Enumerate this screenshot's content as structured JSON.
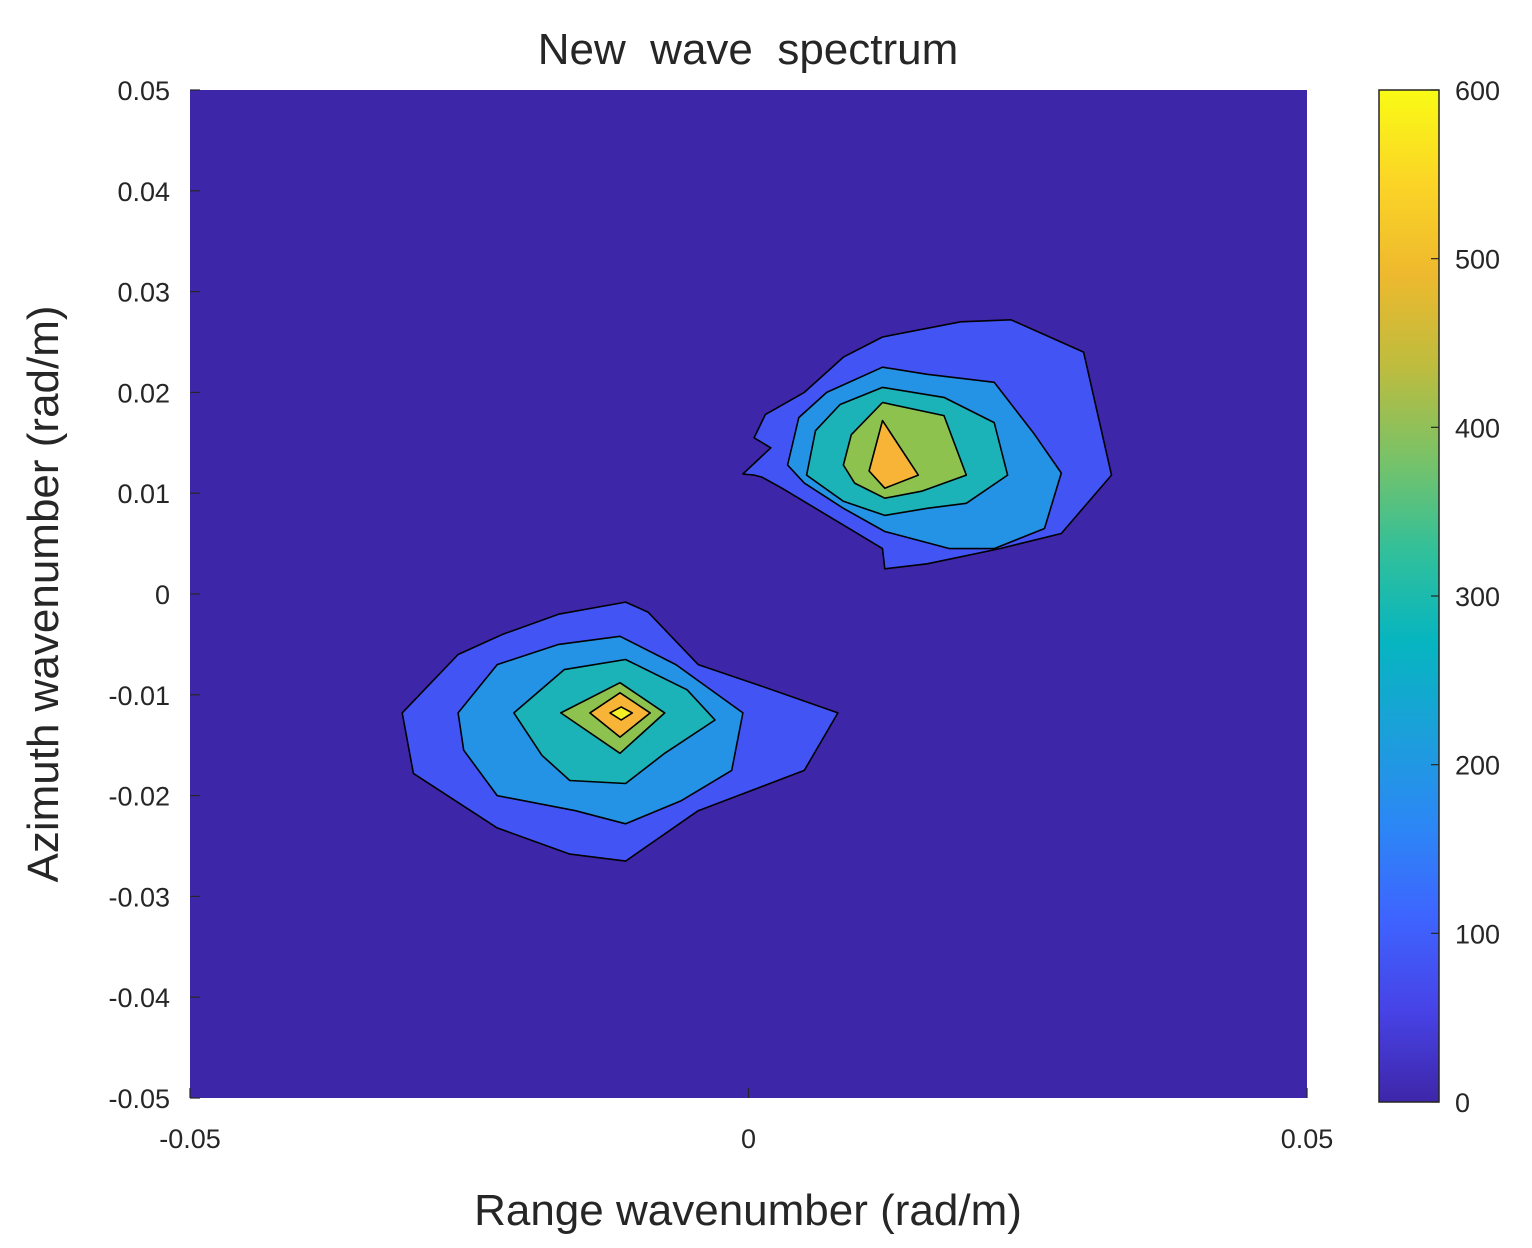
{
  "chart_data": {
    "type": "contourf",
    "title": "New  wave  spectrum",
    "xlabel": "Range wavenumber (rad/m)",
    "ylabel": "Azimuth wavenumber (rad/m)",
    "xlim": [
      -0.05,
      0.05
    ],
    "ylim": [
      -0.05,
      0.05
    ],
    "x_ticks": [
      {
        "value": -0.05,
        "label": "-0.05"
      },
      {
        "value": 0,
        "label": "0"
      },
      {
        "value": 0.05,
        "label": "0.05"
      }
    ],
    "y_ticks": [
      {
        "value": 0.05,
        "label": "0.05"
      },
      {
        "value": 0.04,
        "label": "0.04"
      },
      {
        "value": 0.03,
        "label": "0.03"
      },
      {
        "value": 0.02,
        "label": "0.02"
      },
      {
        "value": 0.01,
        "label": "0.01"
      },
      {
        "value": 0,
        "label": "0"
      },
      {
        "value": -0.01,
        "label": "-0.01"
      },
      {
        "value": -0.02,
        "label": "-0.02"
      },
      {
        "value": -0.03,
        "label": "-0.03"
      },
      {
        "value": -0.04,
        "label": "-0.04"
      },
      {
        "value": -0.05,
        "label": "-0.05"
      }
    ],
    "background_color": "#3E26A8",
    "colorbar": {
      "min": 0,
      "max": 600,
      "colormap": "parula",
      "ticks": [
        {
          "value": 0,
          "label": "0"
        },
        {
          "value": 100,
          "label": "100"
        },
        {
          "value": 200,
          "label": "200"
        },
        {
          "value": 300,
          "label": "300"
        },
        {
          "value": 400,
          "label": "400"
        },
        {
          "value": 500,
          "label": "500"
        },
        {
          "value": 600,
          "label": "600"
        }
      ],
      "stops": [
        "#3E26A8",
        "#4743E7",
        "#3E64FF",
        "#2C87F5",
        "#1BA0DA",
        "#06B5C0",
        "#32C09A",
        "#79C267",
        "#BEBC3E",
        "#EEB92E",
        "#FBD526",
        "#F9FB15"
      ]
    },
    "levels": [
      {
        "name": "level-1",
        "color": "#4354F5",
        "peaks": [
          [
            [
              -0.0005,
              0.0119
            ],
            [
              0.0005,
              0.0118
            ],
            [
              0.0012,
              0.0116
            ],
            [
              0.003,
              0.0105
            ],
            [
              0.006,
              0.0085
            ],
            [
              0.012,
              0.0045
            ],
            [
              0.0122,
              0.0025
            ],
            [
              0.016,
              0.003
            ],
            [
              0.0225,
              0.0045
            ],
            [
              0.028,
              0.006
            ],
            [
              0.0325,
              0.0118
            ],
            [
              0.03,
              0.024
            ],
            [
              0.0235,
              0.0272
            ],
            [
              0.019,
              0.027
            ],
            [
              0.012,
              0.0255
            ],
            [
              0.0085,
              0.0235
            ],
            [
              0.005,
              0.02
            ],
            [
              0.0015,
              0.0178
            ],
            [
              0.0005,
              0.0155
            ],
            [
              0.002,
              0.0145
            ]
          ],
          [
            [
              -0.031,
              -0.0118
            ],
            [
              -0.026,
              -0.006
            ],
            [
              -0.022,
              -0.004
            ],
            [
              -0.017,
              -0.002
            ],
            [
              -0.011,
              -0.0008
            ],
            [
              -0.009,
              -0.0018
            ],
            [
              -0.0045,
              -0.007
            ],
            [
              0.0008,
              -0.009
            ],
            [
              0.008,
              -0.0118
            ],
            [
              0.005,
              -0.0175
            ],
            [
              -0.0045,
              -0.0215
            ],
            [
              -0.011,
              -0.0265
            ],
            [
              -0.016,
              -0.0258
            ],
            [
              -0.0225,
              -0.0232
            ],
            [
              -0.03,
              -0.0178
            ]
          ]
        ]
      },
      {
        "name": "level-2",
        "color": "#2593E5",
        "peaks": [
          [
            [
              0.0035,
              0.0128
            ],
            [
              0.0045,
              0.0175
            ],
            [
              0.007,
              0.02
            ],
            [
              0.012,
              0.0225
            ],
            [
              0.016,
              0.0218
            ],
            [
              0.022,
              0.021
            ],
            [
              0.0255,
              0.016
            ],
            [
              0.028,
              0.012
            ],
            [
              0.0265,
              0.0065
            ],
            [
              0.022,
              0.0045
            ],
            [
              0.018,
              0.0045
            ],
            [
              0.0122,
              0.0062
            ],
            [
              0.0085,
              0.0085
            ],
            [
              0.005,
              0.011
            ]
          ],
          [
            [
              -0.026,
              -0.0118
            ],
            [
              -0.0225,
              -0.007
            ],
            [
              -0.017,
              -0.005
            ],
            [
              -0.0115,
              -0.0042
            ],
            [
              -0.0065,
              -0.007
            ],
            [
              -0.0005,
              -0.0118
            ],
            [
              -0.0015,
              -0.0175
            ],
            [
              -0.006,
              -0.0205
            ],
            [
              -0.011,
              -0.0228
            ],
            [
              -0.0155,
              -0.0215
            ],
            [
              -0.0225,
              -0.02
            ],
            [
              -0.0255,
              -0.0155
            ]
          ]
        ]
      },
      {
        "name": "level-3",
        "color": "#1BB2B8",
        "peaks": [
          [
            [
              0.0052,
              0.0118
            ],
            [
              0.006,
              0.0162
            ],
            [
              0.0082,
              0.0188
            ],
            [
              0.012,
              0.0205
            ],
            [
              0.0175,
              0.0195
            ],
            [
              0.022,
              0.017
            ],
            [
              0.0232,
              0.0118
            ],
            [
              0.0195,
              0.009
            ],
            [
              0.016,
              0.0085
            ],
            [
              0.0122,
              0.0078
            ],
            [
              0.0085,
              0.0092
            ]
          ],
          [
            [
              -0.021,
              -0.0118
            ],
            [
              -0.0165,
              -0.0075
            ],
            [
              -0.011,
              -0.0065
            ],
            [
              -0.0055,
              -0.0095
            ],
            [
              -0.003,
              -0.0125
            ],
            [
              -0.0075,
              -0.0158
            ],
            [
              -0.011,
              -0.0188
            ],
            [
              -0.016,
              -0.0185
            ],
            [
              -0.0185,
              -0.016
            ]
          ]
        ]
      },
      {
        "name": "level-4",
        "color": "#8DC24F",
        "peaks": [
          [
            [
              0.0085,
              0.0128
            ],
            [
              0.0092,
              0.0158
            ],
            [
              0.012,
              0.019
            ],
            [
              0.0175,
              0.0177
            ],
            [
              0.0195,
              0.0118
            ],
            [
              0.0155,
              0.0102
            ],
            [
              0.0122,
              0.0095
            ],
            [
              0.0095,
              0.011
            ]
          ],
          [
            [
              -0.0168,
              -0.0118
            ],
            [
              -0.0115,
              -0.0088
            ],
            [
              -0.0075,
              -0.0118
            ],
            [
              -0.0115,
              -0.0158
            ]
          ]
        ]
      },
      {
        "name": "level-5",
        "color": "#F7B437",
        "peaks": [
          [
            [
              0.0108,
              0.0122
            ],
            [
              0.012,
              0.0172
            ],
            [
              0.0152,
              0.0118
            ],
            [
              0.0122,
              0.0105
            ]
          ],
          [
            [
              -0.0142,
              -0.0118
            ],
            [
              -0.0115,
              -0.0098
            ],
            [
              -0.0088,
              -0.0118
            ],
            [
              -0.0115,
              -0.0142
            ]
          ]
        ]
      },
      {
        "name": "level-6",
        "color": "#F4F024",
        "peaks": [
          [],
          [
            [
              -0.0124,
              -0.0118
            ],
            [
              -0.0114,
              -0.0112
            ],
            [
              -0.0104,
              -0.0118
            ],
            [
              -0.0114,
              -0.0125
            ]
          ]
        ]
      }
    ]
  }
}
